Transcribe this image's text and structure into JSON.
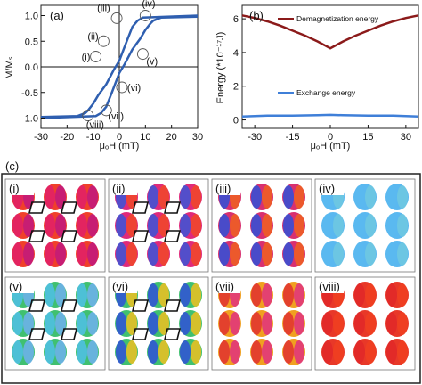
{
  "chart_data": [
    {
      "type": "line",
      "panel_label": "(a)",
      "xlabel": "μₒH (mT)",
      "ylabel": "M/Mₛ",
      "xlim": [
        -30,
        30
      ],
      "ylim": [
        -1.2,
        1.2
      ],
      "xticks": [
        "-30",
        "-20",
        "-10",
        "0",
        "10",
        "20",
        "30"
      ],
      "yticks": [
        "-1.0",
        "-0.5",
        "0.0",
        "0.5",
        "1.0"
      ],
      "color": "#2f5fb0",
      "series": [
        {
          "x": [
            -30,
            -16,
            -13,
            -12,
            -10,
            -8,
            -5,
            -2,
            0,
            3,
            5,
            7,
            9,
            30
          ],
          "y": [
            -0.98,
            -0.96,
            -0.9,
            -0.85,
            -0.72,
            -0.55,
            -0.34,
            -0.05,
            0.12,
            0.52,
            0.78,
            0.9,
            0.96,
            1.0
          ]
        },
        {
          "x": [
            30,
            16,
            13,
            12,
            10,
            8,
            5,
            2,
            0,
            -3,
            -5,
            -7,
            -9,
            -30
          ],
          "y": [
            0.98,
            0.96,
            0.9,
            0.85,
            0.72,
            0.55,
            0.34,
            0.05,
            -0.12,
            -0.52,
            -0.78,
            -0.9,
            -0.96,
            -1.0
          ]
        }
      ],
      "markers": [
        {
          "label": "(i)",
          "x": -9,
          "y": 0.2
        },
        {
          "label": "(ii)",
          "x": -6,
          "y": 0.5
        },
        {
          "label": "(iii)",
          "x": -1,
          "y": 0.95
        },
        {
          "label": "(iv)",
          "x": 10,
          "y": 1.0
        },
        {
          "label": "(v)",
          "x": 9,
          "y": 0.25
        },
        {
          "label": "(vi)",
          "x": 1,
          "y": -0.4
        },
        {
          "label": "(vii)",
          "x": -5,
          "y": -0.85
        },
        {
          "label": "(viii)",
          "x": -12,
          "y": -0.95
        }
      ]
    },
    {
      "type": "line",
      "panel_label": "(b)",
      "xlabel": "μₒH (mT)",
      "ylabel": "Energy (*10⁻¹⁷J)",
      "xlim": [
        -35,
        35
      ],
      "ylim": [
        -0.5,
        6.8
      ],
      "xticks": [
        "-30",
        "-15",
        "0",
        "15",
        "30"
      ],
      "yticks": [
        "0",
        "2",
        "4",
        "6"
      ],
      "series": [
        {
          "name": "Demagnetization energy",
          "color": "#8b1a1a",
          "x": [
            -35,
            -30,
            -25,
            -20,
            -15,
            -10,
            -5,
            0,
            5,
            10,
            15,
            20,
            25,
            30,
            35
          ],
          "y": [
            6.2,
            6.05,
            5.85,
            5.6,
            5.3,
            5.0,
            4.65,
            4.25,
            4.65,
            5.0,
            5.3,
            5.6,
            5.85,
            6.05,
            6.2
          ]
        },
        {
          "name": "Exchange energy",
          "color": "#3f7fd8",
          "x": [
            -35,
            -25,
            -15,
            -5,
            0,
            5,
            15,
            25,
            35
          ],
          "y": [
            0.2,
            0.25,
            0.25,
            0.28,
            0.3,
            0.28,
            0.25,
            0.25,
            0.2
          ]
        }
      ]
    }
  ],
  "panel_c": {
    "label": "(c)",
    "cells": [
      "(i)",
      "(ii)",
      "(iii)",
      "(iv)",
      "(v)",
      "(vi)",
      "(vii)",
      "(viii)"
    ]
  }
}
